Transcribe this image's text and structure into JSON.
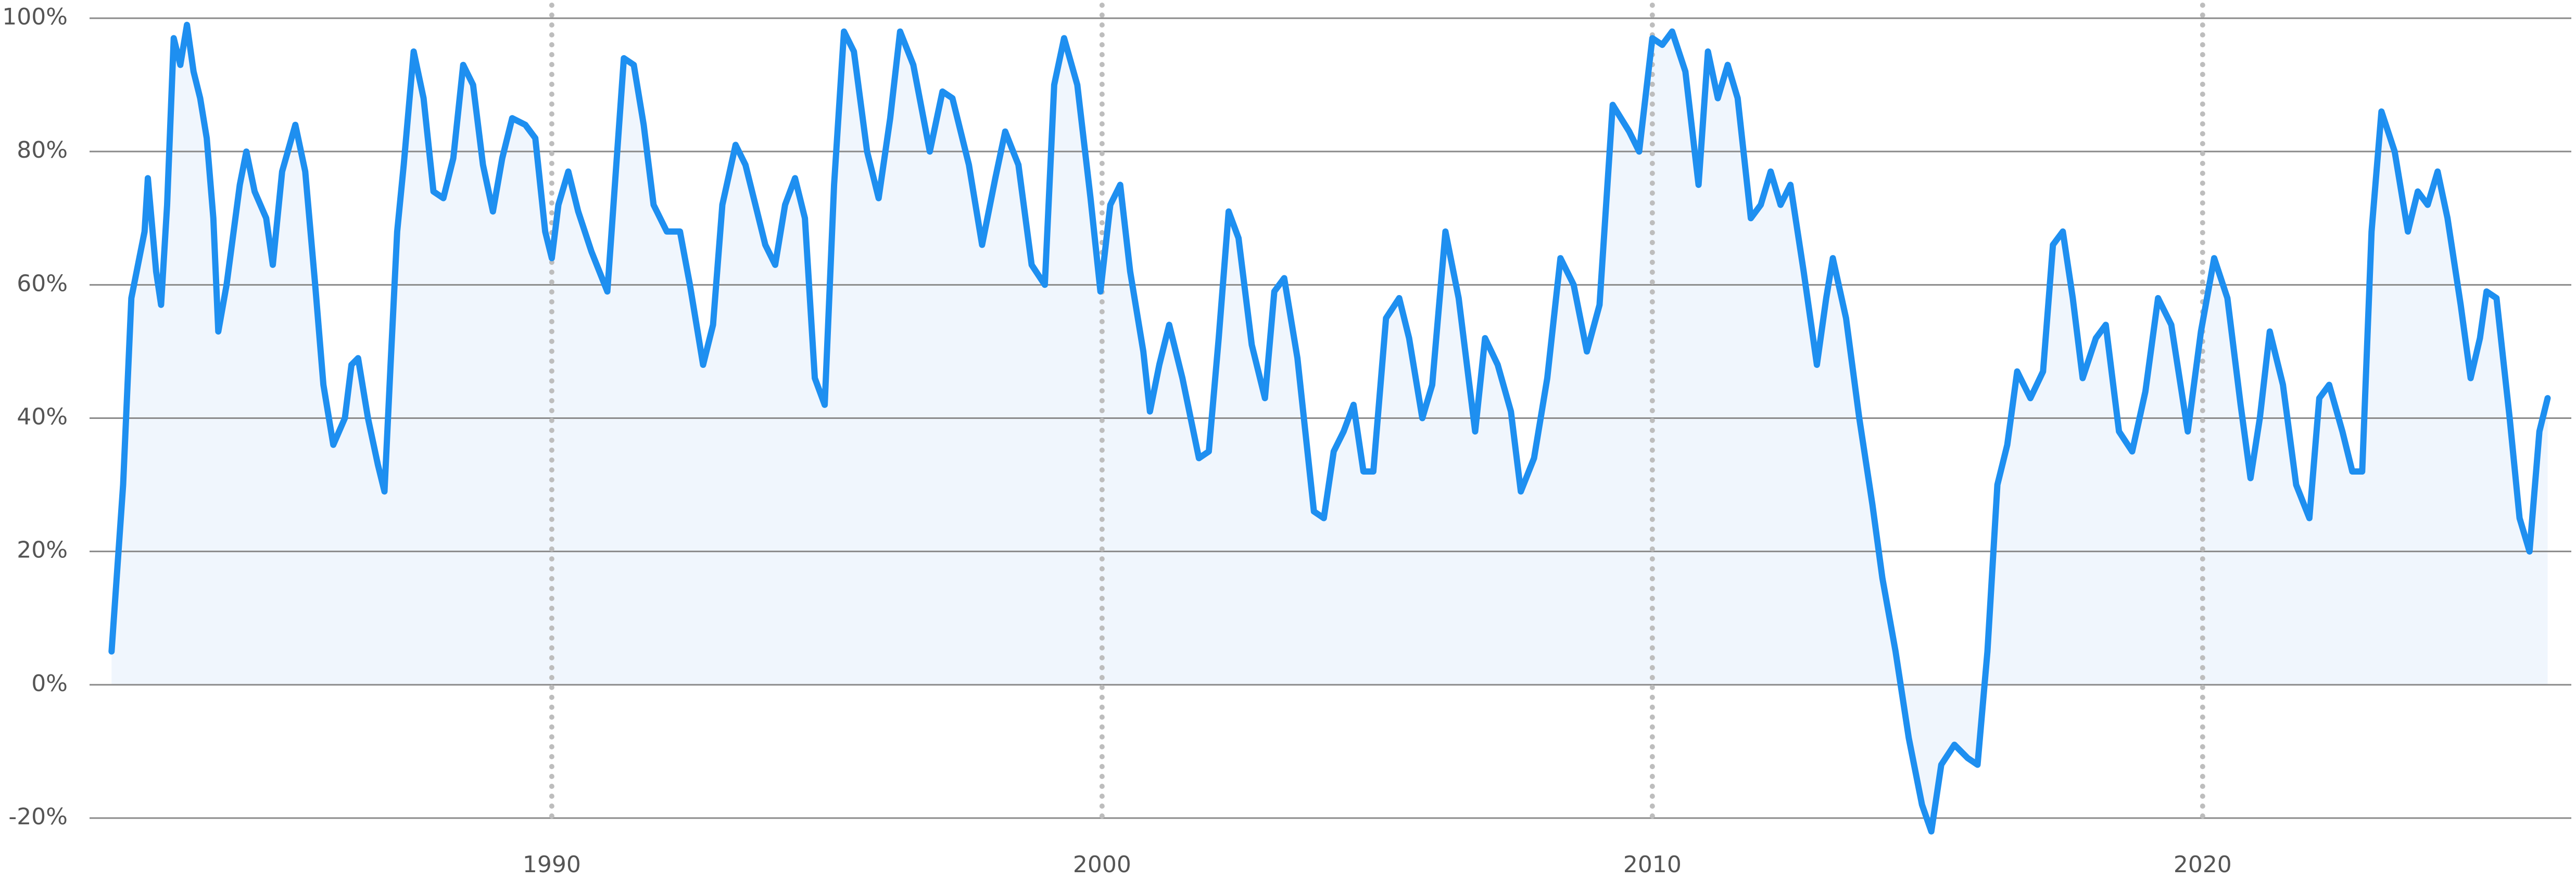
{
  "chart_data": {
    "type": "area-line",
    "x": [
      1982.0,
      1982.21,
      1982.36,
      1982.6,
      1982.66,
      1982.81,
      1982.9,
      1983.01,
      1983.13,
      1983.25,
      1983.37,
      1983.49,
      1983.61,
      1983.73,
      1983.85,
      1983.94,
      1984.09,
      1984.33,
      1984.45,
      1984.6,
      1984.81,
      1984.93,
      1985.1,
      1985.34,
      1985.52,
      1985.7,
      1985.85,
      1986.03,
      1986.24,
      1986.36,
      1986.48,
      1986.66,
      1986.84,
      1986.96,
      1987.07,
      1987.19,
      1987.31,
      1987.49,
      1987.67,
      1987.85,
      1988.03,
      1988.21,
      1988.39,
      1988.57,
      1988.75,
      1988.93,
      1989.1,
      1989.28,
      1989.52,
      1989.7,
      1989.88,
      1990.0,
      1990.12,
      1990.3,
      1990.48,
      1990.72,
      1991.01,
      1991.19,
      1991.31,
      1991.49,
      1991.67,
      1991.85,
      1992.09,
      1992.33,
      1992.51,
      1992.75,
      1992.93,
      1993.1,
      1993.34,
      1993.52,
      1993.7,
      1993.88,
      1994.06,
      1994.24,
      1994.42,
      1994.6,
      1994.78,
      1994.96,
      1995.13,
      1995.31,
      1995.49,
      1995.73,
      1995.94,
      1996.15,
      1996.33,
      1996.57,
      1996.87,
      1997.1,
      1997.28,
      1997.58,
      1997.82,
      1998.06,
      1998.24,
      1998.48,
      1998.72,
      1998.96,
      1999.13,
      1999.31,
      1999.55,
      1999.79,
      1999.97,
      2000.15,
      2000.33,
      2000.51,
      2000.75,
      2000.87,
      2001.04,
      2001.22,
      2001.46,
      2001.76,
      2001.94,
      2002.12,
      2002.3,
      2002.48,
      2002.72,
      2002.96,
      2003.13,
      2003.31,
      2003.55,
      2003.85,
      2004.03,
      2004.21,
      2004.39,
      2004.57,
      2004.75,
      2004.93,
      2005.16,
      2005.4,
      2005.58,
      2005.82,
      2006.0,
      2006.24,
      2006.48,
      2006.78,
      2006.96,
      2007.19,
      2007.43,
      2007.61,
      2007.85,
      2008.09,
      2008.33,
      2008.57,
      2008.81,
      2009.04,
      2009.28,
      2009.58,
      2009.76,
      2010.0,
      2010.18,
      2010.36,
      2010.6,
      2010.84,
      2011.01,
      2011.19,
      2011.37,
      2011.55,
      2011.79,
      2011.97,
      2012.15,
      2012.33,
      2012.51,
      2012.75,
      2012.99,
      2013.16,
      2013.28,
      2013.52,
      2013.76,
      2014.0,
      2014.18,
      2014.42,
      2014.66,
      2014.9,
      2015.07,
      2015.25,
      2015.49,
      2015.73,
      2015.91,
      2016.09,
      2016.27,
      2016.45,
      2016.63,
      2016.87,
      2017.1,
      2017.28,
      2017.46,
      2017.64,
      2017.82,
      2018.06,
      2018.24,
      2018.48,
      2018.72,
      2018.96,
      2019.19,
      2019.43,
      2019.73,
      2019.97,
      2020.21,
      2020.45,
      2020.69,
      2020.87,
      2021.04,
      2021.22,
      2021.46,
      2021.7,
      2021.94,
      2022.12,
      2022.3,
      2022.54,
      2022.72,
      2022.9,
      2023.07,
      2023.25,
      2023.49,
      2023.73,
      2023.91,
      2024.09,
      2024.27,
      2024.45,
      2024.69,
      2024.87,
      2025.04,
      2025.16,
      2025.34,
      2025.58,
      2025.76,
      2025.94,
      2026.12,
      2026.27
    ],
    "values": [
      5,
      30,
      58,
      68,
      76,
      62,
      57,
      72,
      97,
      93,
      99,
      92,
      88,
      82,
      70,
      53,
      60,
      75,
      80,
      74,
      70,
      63,
      77,
      84,
      77,
      60,
      45,
      36,
      40,
      48,
      49,
      40,
      33,
      29,
      48,
      68,
      78,
      95,
      88,
      74,
      73,
      79,
      93,
      90,
      78,
      71,
      79,
      85,
      84,
      82,
      68,
      64,
      72,
      77,
      71,
      65,
      59,
      80,
      94,
      93,
      84,
      72,
      68,
      68,
      60,
      48,
      54,
      72,
      81,
      78,
      72,
      66,
      63,
      72,
      76,
      70,
      46,
      42,
      75,
      98,
      95,
      80,
      73,
      85,
      98,
      93,
      80,
      89,
      88,
      78,
      66,
      76,
      83,
      78,
      63,
      60,
      90,
      97,
      90,
      73,
      59,
      72,
      75,
      62,
      50,
      41,
      48,
      54,
      46,
      34,
      35,
      52,
      71,
      67,
      51,
      43,
      59,
      61,
      49,
      26,
      25,
      35,
      38,
      42,
      32,
      32,
      55,
      58,
      52,
      40,
      45,
      68,
      58,
      38,
      52,
      48,
      41,
      29,
      34,
      46,
      64,
      60,
      50,
      57,
      87,
      83,
      80,
      97,
      96,
      98,
      92,
      75,
      95,
      88,
      93,
      88,
      70,
      72,
      77,
      72,
      75,
      62,
      48,
      58,
      64,
      55,
      40,
      27,
      16,
      5,
      -8,
      -18,
      -22,
      -12,
      -9,
      -11,
      -12,
      5,
      30,
      36,
      47,
      43,
      47,
      66,
      68,
      58,
      46,
      52,
      54,
      38,
      35,
      44,
      58,
      54,
      38,
      53,
      64,
      58,
      42,
      31,
      40,
      53,
      45,
      30,
      25,
      43,
      45,
      38,
      32,
      32,
      68,
      86,
      80,
      68,
      74,
      72,
      77,
      70,
      57,
      46,
      52,
      59,
      58,
      40,
      25,
      20,
      38,
      43
    ],
    "color": "#1e8ff0",
    "fill_color": "#f0f6fd",
    "xlim": [
      1981.6,
      2026.7
    ],
    "xticks": [
      1990,
      2000,
      2010,
      2020
    ],
    "ylim": [
      -20,
      100
    ],
    "yticks": [
      {
        "value": -20,
        "label": "-20%"
      },
      {
        "value": 0,
        "label": "0%"
      },
      {
        "value": 20,
        "label": "20%"
      },
      {
        "value": 40,
        "label": "40%"
      },
      {
        "value": 60,
        "label": "60%"
      },
      {
        "value": 80,
        "label": "80%"
      },
      {
        "value": 100,
        "label": "100%"
      }
    ],
    "grid": true
  }
}
